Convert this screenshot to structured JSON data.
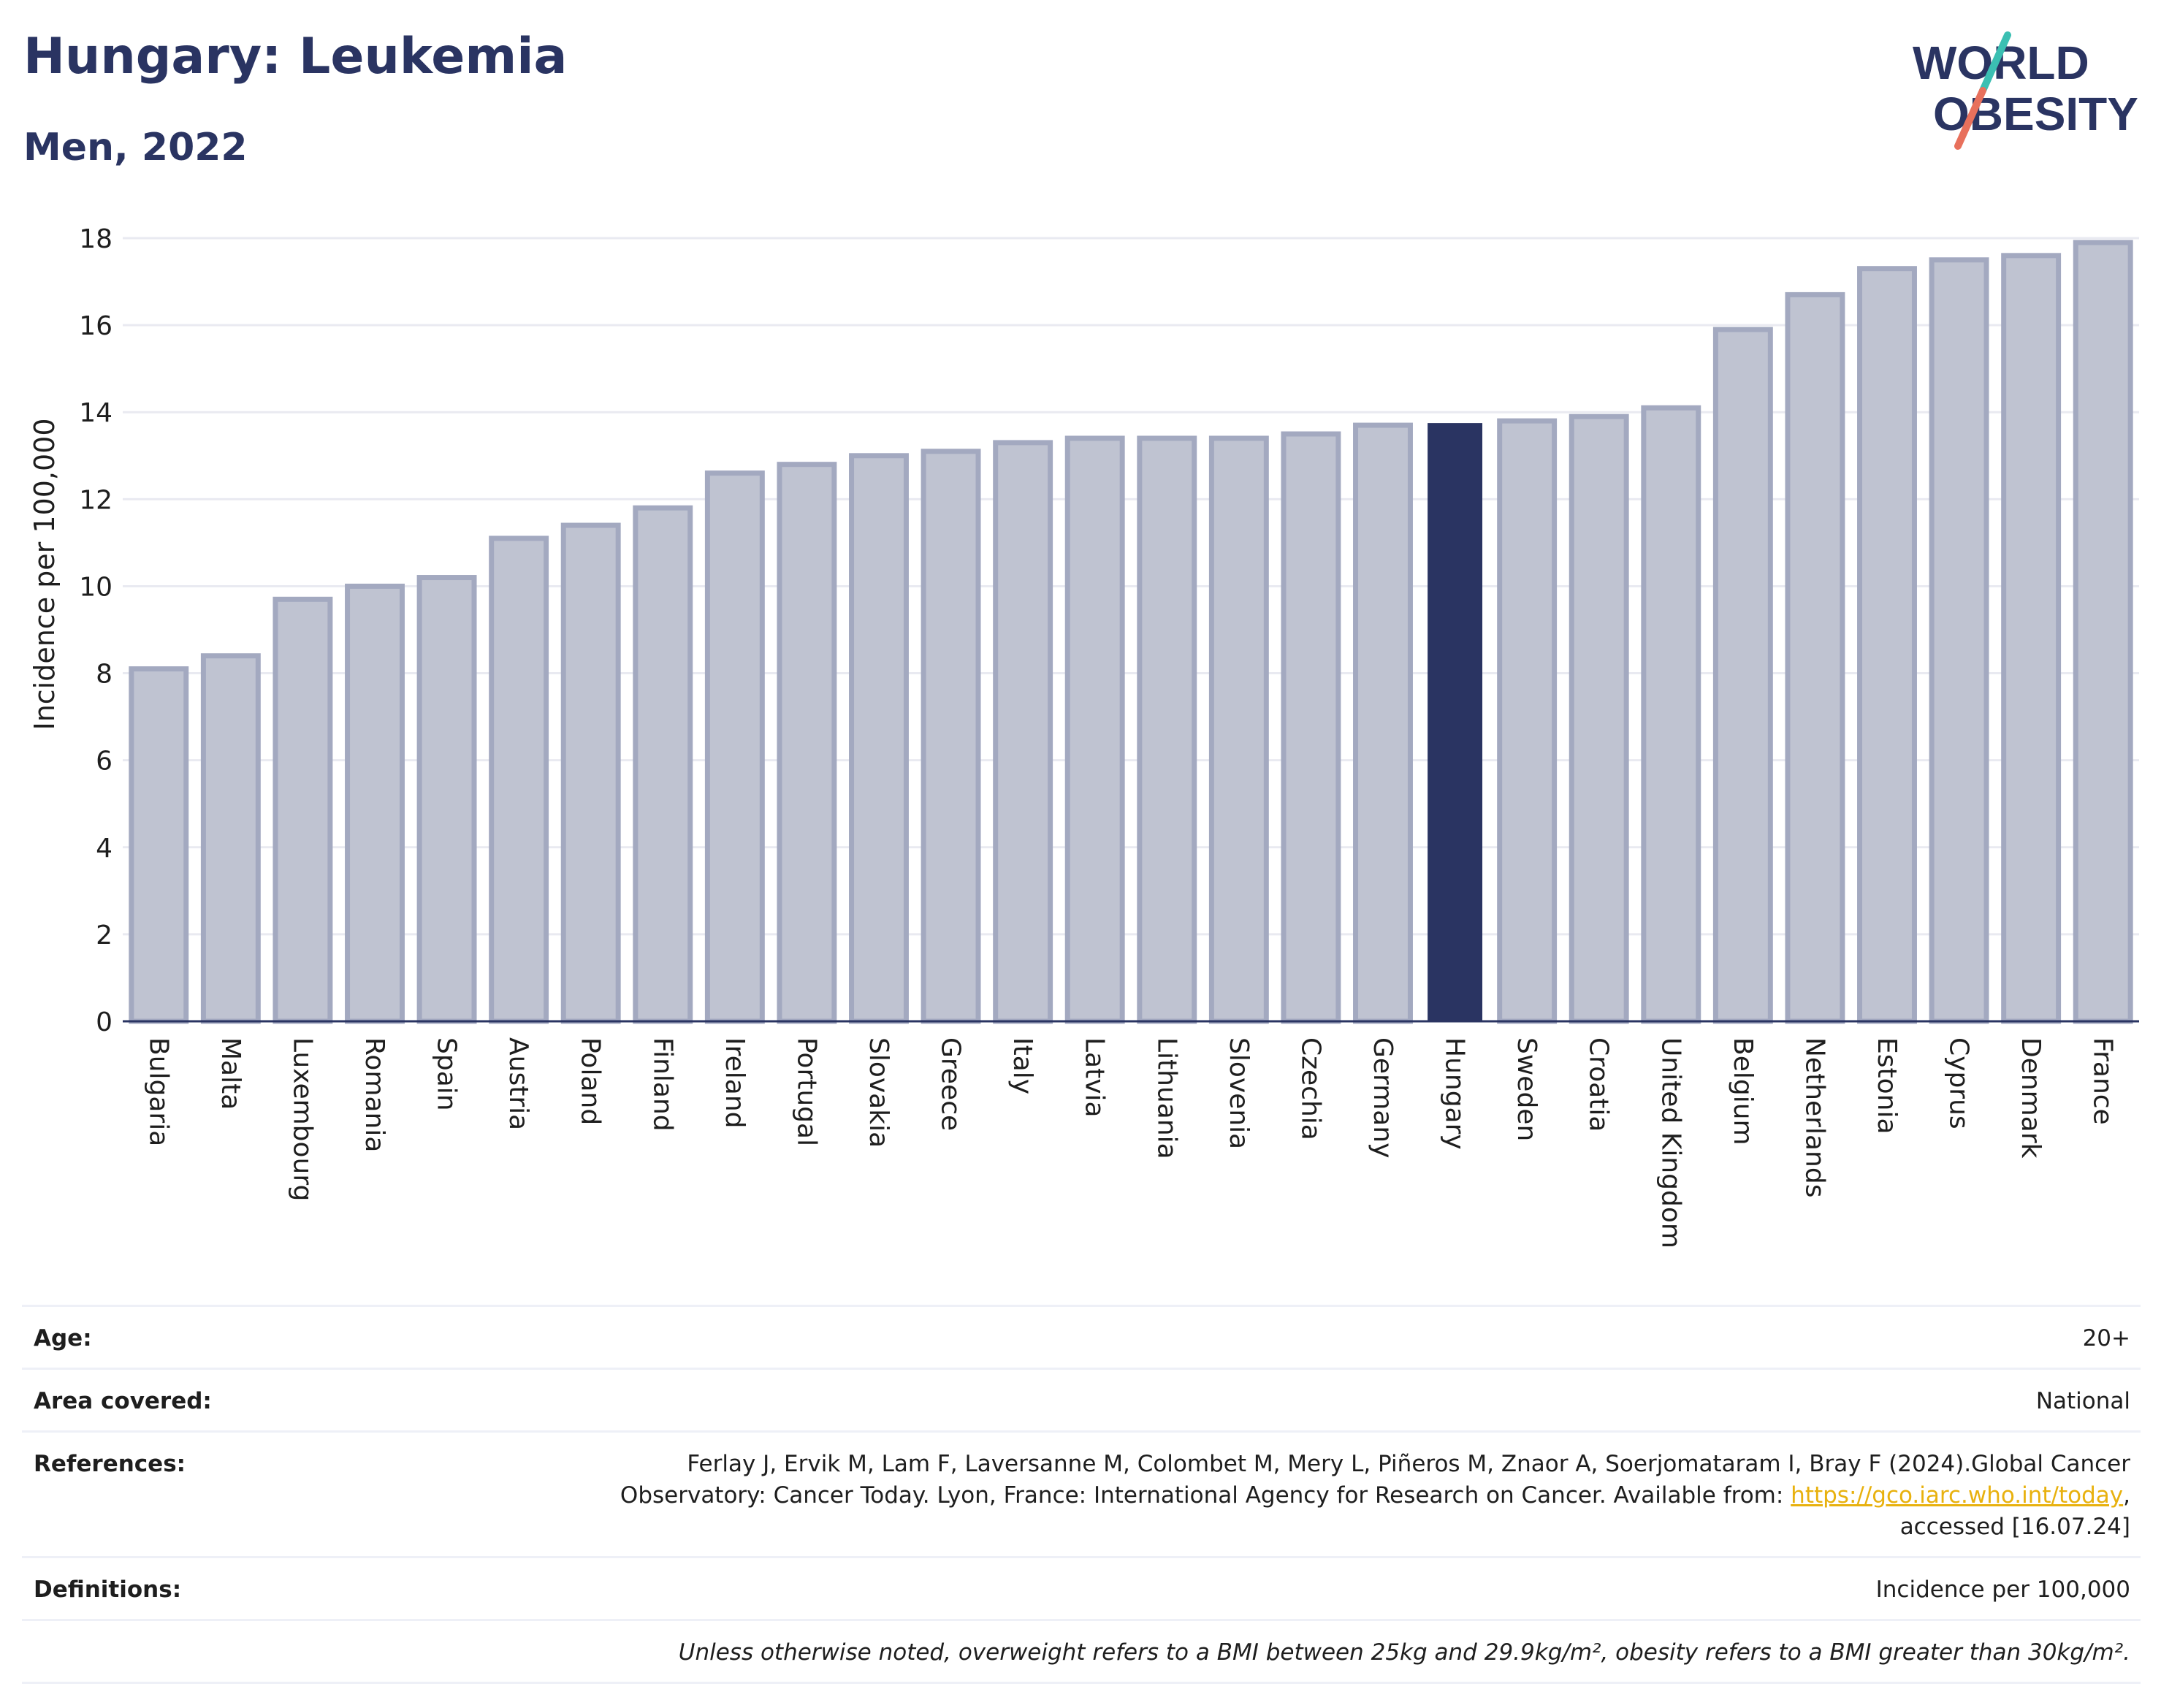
{
  "header": {
    "title": "Hungary: Leukemia",
    "subtitle": "Men, 2022",
    "logo_line1": "WORLD",
    "logo_line2": "OBESITY"
  },
  "colors": {
    "bar_default": "#bfc3d1",
    "bar_border": "#a3a9c0",
    "bar_highlight": "#2a3462",
    "text_dark": "#2a3462",
    "gridline": "#e9eaf1",
    "logo_slash_teal": "#3bbfb2",
    "logo_slash_coral": "#e8705c",
    "link": "#e8b10e"
  },
  "chart_data": {
    "type": "bar",
    "title": "Hungary: Leukemia",
    "subtitle": "Men, 2022",
    "ylabel": "Incidence per 100,000",
    "xlabel": "",
    "ylim": [
      0,
      18
    ],
    "yticks": [
      0,
      2,
      4,
      6,
      8,
      10,
      12,
      14,
      16,
      18
    ],
    "grid": true,
    "highlight": "Hungary",
    "categories": [
      "Bulgaria",
      "Malta",
      "Luxembourg",
      "Romania",
      "Spain",
      "Austria",
      "Poland",
      "Finland",
      "Ireland",
      "Portugal",
      "Slovakia",
      "Greece",
      "Italy",
      "Latvia",
      "Lithuania",
      "Slovenia",
      "Czechia",
      "Germany",
      "Hungary",
      "Sweden",
      "Croatia",
      "United Kingdom",
      "Belgium",
      "Netherlands",
      "Estonia",
      "Cyprus",
      "Denmark",
      "France"
    ],
    "values": [
      8.1,
      8.4,
      9.7,
      10.0,
      10.2,
      11.1,
      11.4,
      11.8,
      12.6,
      12.8,
      13.0,
      13.1,
      13.3,
      13.4,
      13.4,
      13.4,
      13.5,
      13.7,
      13.75,
      13.8,
      13.9,
      14.1,
      15.9,
      16.7,
      17.3,
      17.5,
      17.6,
      17.9
    ]
  },
  "meta": {
    "age_label": "Age:",
    "age_value": "20+",
    "area_label": "Area covered:",
    "area_value": "National",
    "references_label": "References:",
    "references_line1": "Ferlay J, Ervik M, Lam F, Laversanne M, Colombet M, Mery L, Piñeros M, Znaor A, Soerjomataram I, Bray F (2024).Global Cancer",
    "references_line2_pre": "Observatory: Cancer Today. Lyon, France: International Agency for Research on Cancer. Available from: ",
    "references_link": "https://gco.iarc.who.int/today",
    "references_line2_post": ",",
    "references_line3": "accessed [16.07.24]",
    "definitions_label": "Definitions:",
    "definitions_value": "Incidence per 100,000",
    "note": "Unless otherwise noted, overweight refers to a BMI between 25kg and 29.9kg/m², obesity refers to a BMI greater than 30kg/m²."
  }
}
